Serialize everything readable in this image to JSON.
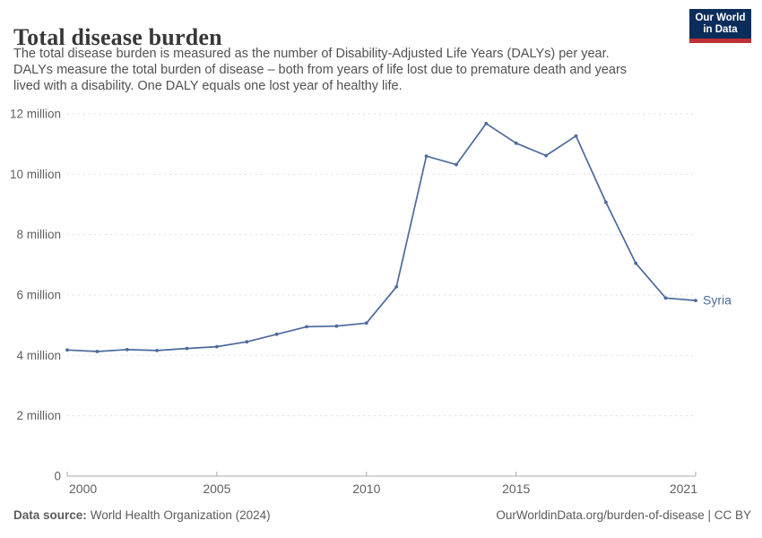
{
  "header": {
    "title": "Total disease burden",
    "subtitle_lines": [
      "The total disease burden is measured as the number of Disability-Adjusted Life Years (DALYs) per year.",
      "DALYs measure the total burden of disease – both from years of life lost due to premature death and years",
      "lived with a disability. One DALY equals one lost year of healthy life."
    ]
  },
  "logo": {
    "line1": "Our World",
    "line2": "in Data",
    "bg_color": "#0b2d5b",
    "stripe_color": "#bf3036"
  },
  "chart_data": {
    "type": "line",
    "title": "Total disease burden",
    "unit": "DALYs (millions)",
    "ylim": [
      0,
      12
    ],
    "grid": "horizontal dashed",
    "legend_position": "series end label",
    "x_ticks": [
      {
        "year": 2000,
        "label": "2000"
      },
      {
        "year": 2005,
        "label": "2005"
      },
      {
        "year": 2010,
        "label": "2010"
      },
      {
        "year": 2015,
        "label": "2015"
      },
      {
        "year": 2021,
        "label": "2021"
      }
    ],
    "y_ticks": [
      {
        "value": 0,
        "label": "0"
      },
      {
        "value": 2,
        "label": "2 million"
      },
      {
        "value": 4,
        "label": "4 million"
      },
      {
        "value": 6,
        "label": "6 million"
      },
      {
        "value": 8,
        "label": "8 million"
      },
      {
        "value": 10,
        "label": "10 million"
      },
      {
        "value": 12,
        "label": "12 million"
      }
    ],
    "series": [
      {
        "name": "Syria",
        "color": "#4c6a9c",
        "x": [
          2000,
          2001,
          2002,
          2003,
          2004,
          2005,
          2006,
          2007,
          2008,
          2009,
          2010,
          2011,
          2012,
          2013,
          2014,
          2015,
          2016,
          2017,
          2018,
          2019,
          2020,
          2021
        ],
        "values_millions": [
          4.18,
          4.13,
          4.19,
          4.16,
          4.23,
          4.29,
          4.45,
          4.7,
          4.95,
          4.97,
          5.07,
          6.27,
          10.6,
          10.32,
          11.68,
          11.03,
          10.62,
          11.27,
          9.07,
          7.05,
          5.9,
          5.82
        ]
      }
    ]
  },
  "footer": {
    "source_label": "Data source:",
    "source_value": "World Health Organization (2024)",
    "right_text": "OurWorldinData.org/burden-of-disease | CC BY"
  },
  "colors": {
    "line": "#4c6a9c",
    "grid": "#dedede",
    "axis": "#a8a8a8",
    "tick_text": "#606060"
  }
}
